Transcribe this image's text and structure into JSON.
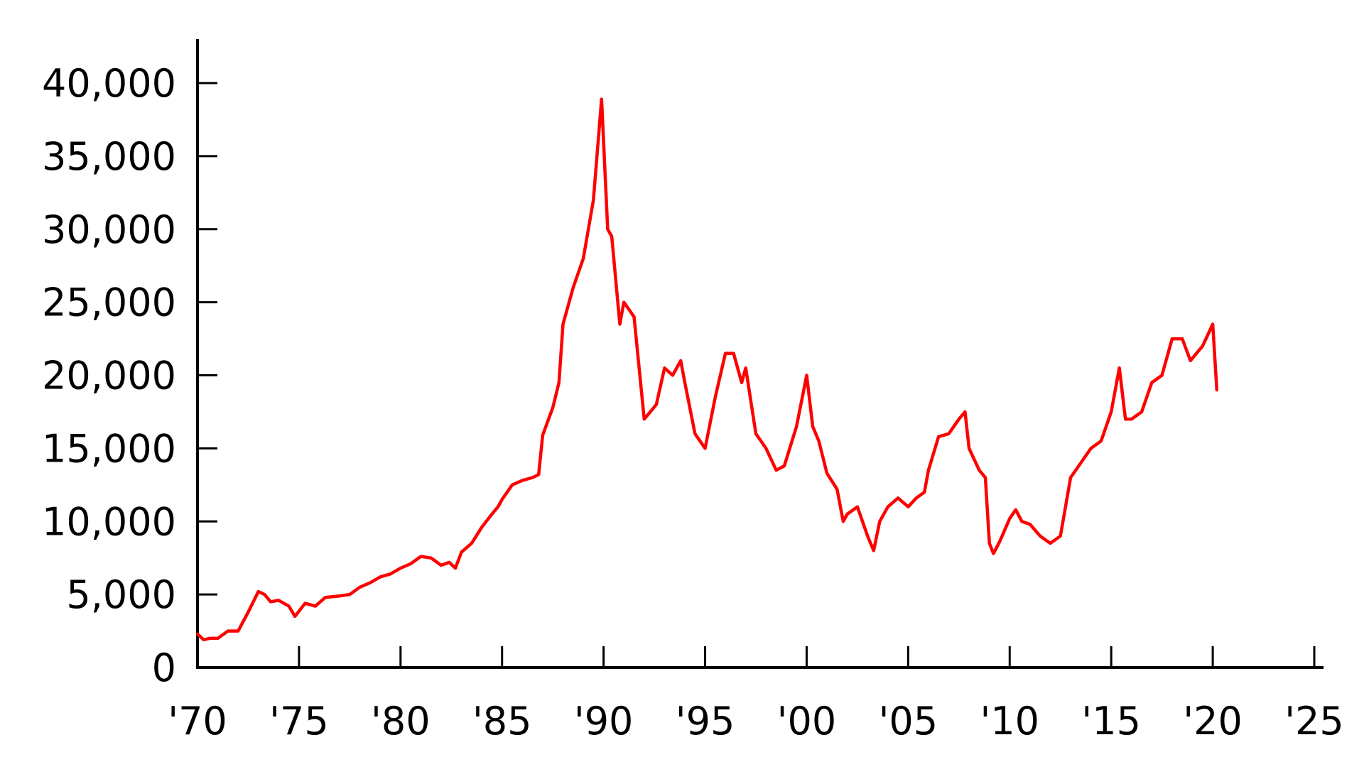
{
  "chart_data": {
    "type": "line",
    "title": "",
    "xlabel": "",
    "ylabel": "",
    "xlim": [
      1970,
      2025
    ],
    "ylim": [
      0,
      40000
    ],
    "grid": false,
    "x_ticks": [
      1970,
      1975,
      1980,
      1985,
      1990,
      1995,
      2000,
      2005,
      2010,
      2015,
      2020,
      2025
    ],
    "x_tick_labels": [
      "'70",
      "'75",
      "'80",
      "'85",
      "'90",
      "'95",
      "'00",
      "'05",
      "'10",
      "'15",
      "'20",
      "'25"
    ],
    "y_ticks": [
      0,
      5000,
      10000,
      15000,
      20000,
      25000,
      30000,
      35000,
      40000
    ],
    "y_tick_labels": [
      "0",
      "5,000",
      "10,000",
      "15,000",
      "20,000",
      "25,000",
      "30,000",
      "35,000",
      "40,000"
    ],
    "colors": {
      "line": "#ff0000",
      "axes": "#000000"
    },
    "series": [
      {
        "x": [
          1970.0,
          1970.3,
          1970.6,
          1971.0,
          1971.5,
          1972.0,
          1972.5,
          1973.0,
          1973.3,
          1973.6,
          1974.0,
          1974.5,
          1974.8,
          1975.3,
          1975.8,
          1976.3,
          1977.0,
          1977.5,
          1978.0,
          1978.5,
          1979.0,
          1979.5,
          1980.0,
          1980.5,
          1981.0,
          1981.5,
          1982.0,
          1982.4,
          1982.7,
          1983.0,
          1983.5,
          1984.0,
          1984.5,
          1984.8,
          1985.0,
          1985.5,
          1986.0,
          1986.5,
          1986.8,
          1987.0,
          1987.5,
          1987.8,
          1988.0,
          1988.5,
          1989.0,
          1989.5,
          1989.9,
          1990.2,
          1990.4,
          1990.8,
          1991.0,
          1991.5,
          1992.0,
          1992.3,
          1992.6,
          1993.0,
          1993.4,
          1993.8,
          1994.0,
          1994.5,
          1995.0,
          1995.5,
          1996.0,
          1996.4,
          1996.8,
          1997.0,
          1997.5,
          1998.0,
          1998.5,
          1998.9,
          1999.5,
          2000.0,
          2000.3,
          2000.6,
          2001.0,
          2001.5,
          2001.8,
          2002.0,
          2002.5,
          2003.0,
          2003.3,
          2003.6,
          2004.0,
          2004.5,
          2005.0,
          2005.4,
          2005.8,
          2006.0,
          2006.5,
          2007.0,
          2007.5,
          2007.8,
          2008.0,
          2008.5,
          2008.8,
          2009.0,
          2009.2,
          2009.5,
          2010.0,
          2010.3,
          2010.6,
          2011.0,
          2011.5,
          2012.0,
          2012.5,
          2013.0,
          2013.5,
          2014.0,
          2014.5,
          2015.0,
          2015.4,
          2015.7,
          2016.0,
          2016.5,
          2017.0,
          2017.5,
          2018.0,
          2018.5,
          2018.9,
          2019.2,
          2019.5,
          2020.0,
          2020.2
        ],
        "values": [
          2300,
          1900,
          2000,
          2000,
          2500,
          2500,
          3800,
          5200,
          5000,
          4500,
          4600,
          4200,
          3500,
          4400,
          4200,
          4800,
          4900,
          5000,
          5500,
          5800,
          6200,
          6400,
          6800,
          7100,
          7600,
          7500,
          7000,
          7200,
          6800,
          7900,
          8500,
          9600,
          10500,
          11000,
          11500,
          12500,
          12800,
          13000,
          13200,
          15900,
          17800,
          19500,
          23500,
          26000,
          28000,
          32000,
          38900,
          30000,
          29500,
          23500,
          25000,
          24000,
          17000,
          17500,
          18000,
          20500,
          20000,
          21000,
          19500,
          16000,
          15000,
          18500,
          21500,
          21500,
          19500,
          20500,
          16000,
          15000,
          13500,
          13800,
          16500,
          20000,
          16500,
          15500,
          13300,
          12200,
          10000,
          10500,
          11000,
          9000,
          8000,
          10000,
          11000,
          11600,
          11000,
          11600,
          12000,
          13500,
          15800,
          16000,
          17000,
          17500,
          15000,
          13500,
          13000,
          8500,
          7800,
          8600,
          10200,
          10800,
          10000,
          9800,
          9000,
          8500,
          9000,
          13000,
          14000,
          15000,
          15500,
          17500,
          20500,
          17000,
          17000,
          17500,
          19500,
          20000,
          22500,
          22500,
          21000,
          21500,
          22000,
          23500,
          19000
        ]
      }
    ]
  }
}
